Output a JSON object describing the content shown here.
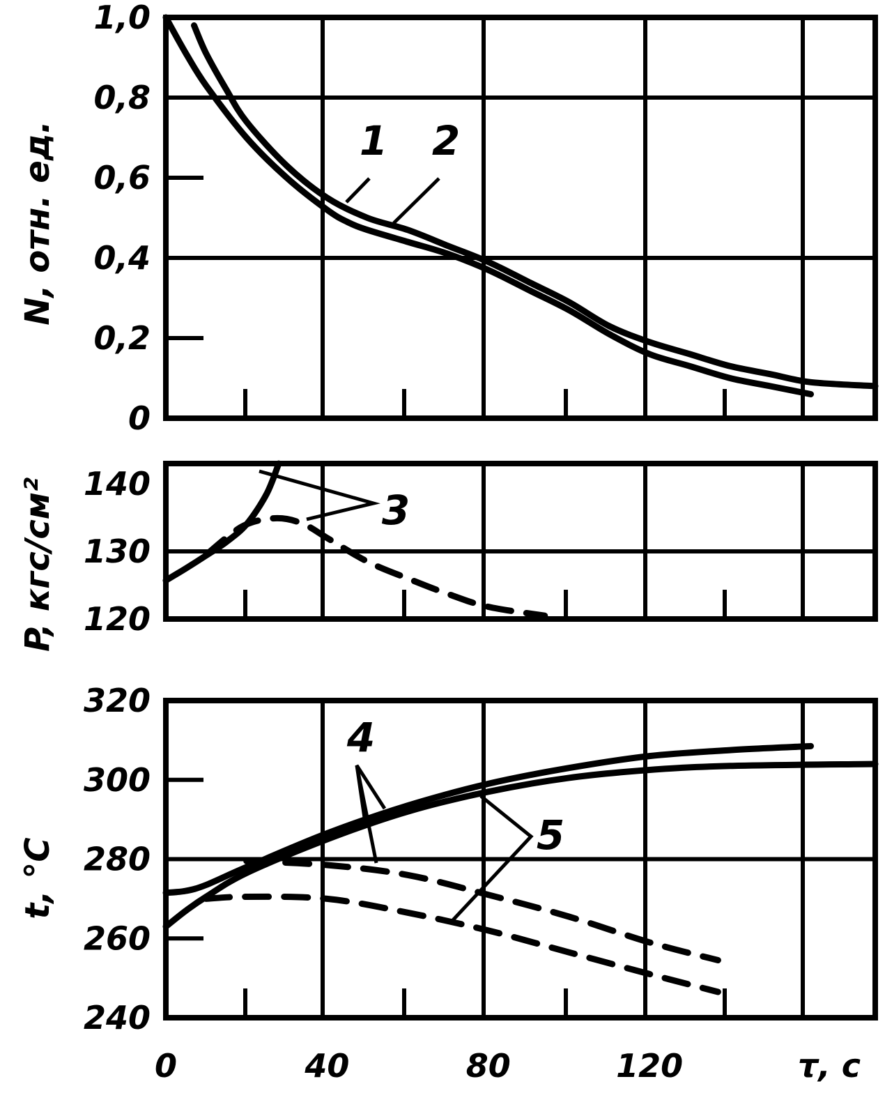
{
  "chart_data": [
    {
      "type": "line",
      "ylabel": "N, отн. ед.",
      "xlim": [
        0,
        176
      ],
      "ylim": [
        0,
        1.0
      ],
      "x_ticks": [
        "0",
        "40",
        "80",
        "120"
      ],
      "y_ticks": [
        "0",
        "0,2",
        "0,4",
        "0,6",
        "0,8",
        "1,0"
      ],
      "grid": true,
      "series": [
        {
          "name": "1",
          "style": "solid",
          "x": [
            0,
            5,
            10,
            20,
            30,
            40,
            45,
            50,
            60,
            70,
            80,
            90,
            100,
            110,
            120,
            130,
            140,
            150,
            160
          ],
          "y": [
            1.0,
            0.91,
            0.83,
            0.7,
            0.6,
            0.52,
            0.49,
            0.47,
            0.44,
            0.41,
            0.37,
            0.32,
            0.27,
            0.21,
            0.16,
            0.13,
            0.1,
            0.08,
            0.06
          ]
        },
        {
          "name": "2",
          "style": "solid",
          "x": [
            7,
            10,
            15,
            20,
            30,
            40,
            50,
            60,
            70,
            80,
            90,
            100,
            110,
            120,
            130,
            140,
            150,
            160,
            176
          ],
          "y": [
            0.98,
            0.91,
            0.82,
            0.74,
            0.63,
            0.55,
            0.5,
            0.47,
            0.43,
            0.39,
            0.34,
            0.29,
            0.23,
            0.19,
            0.16,
            0.13,
            0.11,
            0.09,
            0.08
          ]
        }
      ]
    },
    {
      "type": "line",
      "ylabel": "P, кгс/см²",
      "xlim": [
        0,
        176
      ],
      "ylim": [
        120,
        143
      ],
      "y_ticks": [
        "120",
        "130",
        "140"
      ],
      "grid": true,
      "series": [
        {
          "name": "3",
          "style": "solid",
          "x": [
            0,
            5,
            10,
            15,
            20,
            25,
            28
          ],
          "y": [
            125.7,
            127.5,
            129.4,
            131.4,
            134.0,
            138.5,
            143.0
          ]
        },
        {
          "name": "3",
          "style": "dashed",
          "x": [
            10,
            16,
            20,
            25,
            30,
            35,
            40,
            50,
            60,
            70,
            80,
            94
          ],
          "y": [
            129.5,
            132.5,
            134.0,
            134.8,
            134.8,
            133.8,
            132.0,
            128.5,
            126.0,
            123.7,
            121.8,
            120.5
          ]
        }
      ]
    },
    {
      "type": "line",
      "xlabel": "τ, с",
      "ylabel": "t, °С",
      "xlim": [
        0,
        176
      ],
      "ylim": [
        240,
        320
      ],
      "x_ticks": [
        "0",
        "40",
        "80",
        "120"
      ],
      "y_ticks": [
        "240",
        "260",
        "280",
        "300",
        "320"
      ],
      "grid": true,
      "series": [
        {
          "name": "4",
          "style": "solid",
          "x": [
            0,
            5,
            10,
            20,
            40,
            60,
            80,
            100,
            120,
            140,
            160
          ],
          "y": [
            271.5,
            272.0,
            273.5,
            278.0,
            286.5,
            293.5,
            299.0,
            303.0,
            306.0,
            307.5,
            308.5
          ]
        },
        {
          "name": "4",
          "style": "dashed",
          "x": [
            20,
            40,
            60,
            80,
            100,
            120,
            137
          ],
          "y": [
            279.5,
            278.5,
            276.0,
            271.0,
            265.5,
            259.0,
            254.5
          ]
        },
        {
          "name": "5",
          "style": "solid",
          "x": [
            0,
            5,
            10,
            20,
            40,
            60,
            80,
            100,
            120,
            140,
            176
          ],
          "y": [
            263.0,
            267.0,
            270.5,
            276.5,
            285.0,
            292.0,
            297.0,
            300.5,
            302.5,
            303.5,
            304.0
          ]
        },
        {
          "name": "5",
          "style": "dashed",
          "x": [
            10,
            20,
            40,
            60,
            80,
            100,
            120,
            137
          ],
          "y": [
            270.0,
            270.5,
            270.0,
            266.5,
            262.0,
            256.5,
            251.0,
            246.5
          ]
        }
      ]
    }
  ],
  "curve_labels": [
    "1",
    "2",
    "3",
    "4",
    "5"
  ],
  "colors": {
    "ink": "#000000",
    "paper": "#ffffff"
  }
}
